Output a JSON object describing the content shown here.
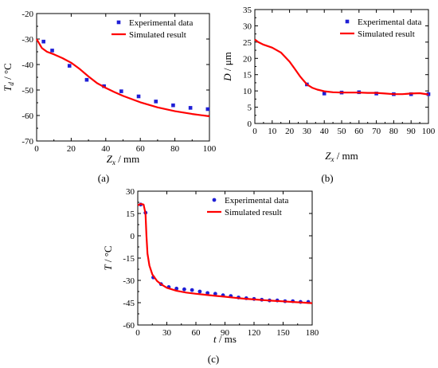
{
  "chart_data": [
    {
      "type": "scatter",
      "caption": "(a)",
      "xlabel_main": "Z",
      "xlabel_sub": "x",
      "xlabel_unit": " / mm",
      "ylabel_main": "T",
      "ylabel_sub": "d",
      "ylabel_unit": " / °C",
      "xlim": [
        0,
        100
      ],
      "ylim": [
        -70,
        -20
      ],
      "xticks": [
        "0",
        "20",
        "40",
        "60",
        "80",
        "100"
      ],
      "yticks": [
        "-20",
        "-30",
        "-40",
        "-50",
        "-60",
        "-70"
      ],
      "legend": {
        "placement": "top-right",
        "items": [
          "Experimental data",
          "Simulated result"
        ]
      },
      "series": [
        {
          "name": "Experimental data",
          "kind": "points",
          "marker": "square",
          "color": "#1f1fd6",
          "x": [
            4,
            9,
            19,
            29,
            39,
            49,
            59,
            69,
            79,
            89,
            99
          ],
          "y": [
            -31,
            -34.5,
            -40.5,
            -46,
            -48.5,
            -50.5,
            -52.5,
            -54.5,
            -56,
            -57,
            -57.5
          ]
        },
        {
          "name": "Simulated result",
          "kind": "line",
          "color": "#ff0000",
          "x": [
            0,
            3,
            6,
            10,
            15,
            20,
            25,
            30,
            35,
            40,
            45,
            50,
            60,
            70,
            80,
            90,
            100
          ],
          "y": [
            -30,
            -33.5,
            -35,
            -36,
            -37.5,
            -39.3,
            -41.8,
            -44.7,
            -47.3,
            -49.2,
            -50.8,
            -52.3,
            -54.8,
            -56.8,
            -58.3,
            -59.4,
            -60.3
          ]
        }
      ]
    },
    {
      "type": "scatter",
      "caption": "(b)",
      "xlabel_main": "Z",
      "xlabel_sub": "x",
      "xlabel_unit": " / mm",
      "ylabel_main": "D",
      "ylabel_sub": "",
      "ylabel_unit": " / μm",
      "xlim": [
        0,
        100
      ],
      "ylim": [
        0,
        35
      ],
      "xticks": [
        "0",
        "10",
        "20",
        "30",
        "40",
        "50",
        "60",
        "70",
        "80",
        "90",
        "100"
      ],
      "yticks": [
        "0",
        "5",
        "10",
        "15",
        "20",
        "25",
        "30",
        "35"
      ],
      "legend": {
        "placement": "top-right",
        "items": [
          "Experimental data",
          "Simulated result"
        ]
      },
      "series": [
        {
          "name": "Experimental data",
          "kind": "points",
          "marker": "square",
          "color": "#1f1fd6",
          "x": [
            30,
            40,
            50,
            60,
            70,
            80,
            90,
            100
          ],
          "y": [
            12,
            9.2,
            9.5,
            9.6,
            9.2,
            9,
            9,
            9
          ]
        },
        {
          "name": "Simulated result",
          "kind": "line",
          "color": "#ff0000",
          "x": [
            0,
            2,
            5,
            10,
            15,
            20,
            23,
            26,
            30,
            33,
            36,
            40,
            45,
            50,
            55,
            60,
            65,
            70,
            75,
            80,
            85,
            90,
            95,
            100
          ],
          "y": [
            25.8,
            25,
            24.2,
            23.3,
            21.8,
            19,
            16.8,
            14.5,
            12,
            11,
            10.4,
            9.9,
            9.6,
            9.5,
            9.5,
            9.5,
            9.4,
            9.4,
            9.2,
            9,
            9,
            9.2,
            9.3,
            8.9
          ]
        }
      ]
    },
    {
      "type": "scatter",
      "caption": "(c)",
      "xlabel_main": "t",
      "xlabel_sub": "",
      "xlabel_unit": " / ms",
      "ylabel_main": "T",
      "ylabel_sub": "",
      "ylabel_unit": " / °C",
      "xlim": [
        0,
        180
      ],
      "ylim": [
        -60,
        30
      ],
      "xticks": [
        "0",
        "30",
        "60",
        "90",
        "120",
        "150",
        "180"
      ],
      "yticks": [
        "30",
        "15",
        "0",
        "-15",
        "-30",
        "-45",
        "-60"
      ],
      "legend": {
        "placement": "top-right",
        "items": [
          "Experimental data",
          "Simulated result"
        ]
      },
      "series": [
        {
          "name": "Experimental data",
          "kind": "points",
          "marker": "circle",
          "color": "#1f1fd6",
          "x": [
            3,
            8,
            16,
            24,
            32,
            40,
            48,
            56,
            64,
            72,
            80,
            88,
            96,
            104,
            112,
            120,
            128,
            136,
            144,
            152,
            160,
            168,
            176
          ],
          "y": [
            21,
            15.5,
            -28,
            -32.5,
            -34.5,
            -35.5,
            -36,
            -36.5,
            -37.5,
            -38.5,
            -39,
            -40,
            -40.5,
            -41.5,
            -42,
            -42.5,
            -43,
            -43.5,
            -43.5,
            -44,
            -44,
            -44.5,
            -44.5
          ]
        },
        {
          "name": "Simulated result",
          "kind": "line",
          "color": "#ff0000",
          "x": [
            0,
            3,
            6,
            8,
            9,
            10,
            12,
            15,
            20,
            25,
            30,
            40,
            50,
            60,
            70,
            80,
            90,
            100,
            110,
            120,
            130,
            140,
            150,
            160,
            170,
            180
          ],
          "y": [
            20.5,
            21.5,
            21,
            15,
            0,
            -12,
            -20,
            -26,
            -30.5,
            -33,
            -35,
            -37,
            -38.2,
            -39,
            -39.7,
            -40.4,
            -41,
            -41.7,
            -42.3,
            -42.8,
            -43.3,
            -43.7,
            -44.1,
            -44.5,
            -44.9,
            -45.3
          ]
        }
      ]
    }
  ]
}
